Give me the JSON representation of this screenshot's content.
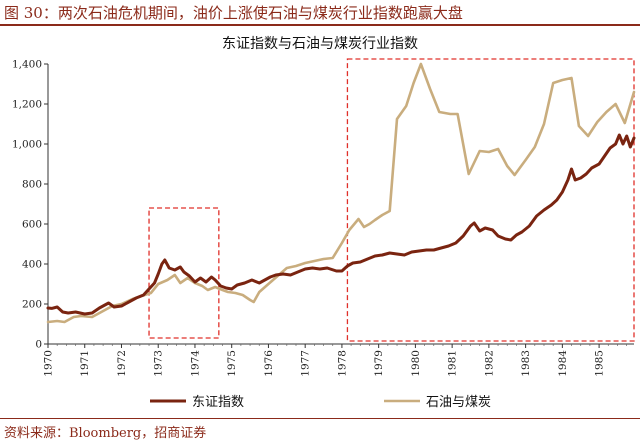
{
  "header": {
    "figure_title": "图 30：两次石油危机期间，油价上涨使石油与煤炭行业指数跑赢大盘",
    "source": "资料来源：Bloomberg，招商证券"
  },
  "colors": {
    "accent": "#8b2a1a",
    "series_dongzheng": "#7a2410",
    "series_oilcoal": "#c9ad7e",
    "highlight_box": "#e0302a"
  },
  "chart_data": {
    "type": "line",
    "title": "东证指数与石油与煤炭行业指数",
    "xlabel": "",
    "ylabel": "",
    "xlim": [
      1970.0,
      1985.95
    ],
    "ylim": [
      0,
      1400
    ],
    "yticks": [
      0,
      200,
      400,
      600,
      800,
      1000,
      1200,
      1400
    ],
    "ytick_labels": [
      "0",
      "200",
      "400",
      "600",
      "800",
      "1,000",
      "1,200",
      "1,400"
    ],
    "xticks": [
      "1970",
      "1971",
      "1972",
      "1973",
      "1974",
      "1975",
      "1976",
      "1977",
      "1978",
      "1979",
      "1980",
      "1981",
      "1982",
      "1983",
      "1984",
      "1985"
    ],
    "grid": false,
    "legend": "bottom",
    "highlight_periods": [
      {
        "x": [
          1972.75,
          1974.65
        ],
        "y": [
          30,
          680
        ]
      },
      {
        "x": [
          1978.15,
          1985.95
        ],
        "y": [
          15,
          1425
        ]
      }
    ],
    "series": [
      {
        "name": "东证指数",
        "points": [
          [
            1970.0,
            180
          ],
          [
            1970.1,
            178
          ],
          [
            1970.25,
            185
          ],
          [
            1970.4,
            160
          ],
          [
            1970.55,
            155
          ],
          [
            1970.75,
            160
          ],
          [
            1971.0,
            150
          ],
          [
            1971.2,
            155
          ],
          [
            1971.4,
            180
          ],
          [
            1971.55,
            195
          ],
          [
            1971.65,
            205
          ],
          [
            1971.8,
            185
          ],
          [
            1972.0,
            190
          ],
          [
            1972.2,
            210
          ],
          [
            1972.4,
            230
          ],
          [
            1972.6,
            245
          ],
          [
            1972.75,
            275
          ],
          [
            1972.9,
            305
          ],
          [
            1973.0,
            350
          ],
          [
            1973.1,
            400
          ],
          [
            1973.18,
            420
          ],
          [
            1973.3,
            380
          ],
          [
            1973.45,
            370
          ],
          [
            1973.6,
            385
          ],
          [
            1973.7,
            360
          ],
          [
            1973.85,
            340
          ],
          [
            1974.0,
            310
          ],
          [
            1974.15,
            330
          ],
          [
            1974.3,
            310
          ],
          [
            1974.45,
            335
          ],
          [
            1974.55,
            320
          ],
          [
            1974.7,
            290
          ],
          [
            1974.85,
            280
          ],
          [
            1975.0,
            275
          ],
          [
            1975.15,
            295
          ],
          [
            1975.35,
            305
          ],
          [
            1975.55,
            320
          ],
          [
            1975.75,
            305
          ],
          [
            1975.9,
            320
          ],
          [
            1976.05,
            335
          ],
          [
            1976.2,
            345
          ],
          [
            1976.4,
            350
          ],
          [
            1976.6,
            345
          ],
          [
            1976.8,
            360
          ],
          [
            1977.0,
            375
          ],
          [
            1977.2,
            380
          ],
          [
            1977.4,
            375
          ],
          [
            1977.6,
            380
          ],
          [
            1977.85,
            365
          ],
          [
            1978.0,
            365
          ],
          [
            1978.15,
            390
          ],
          [
            1978.3,
            405
          ],
          [
            1978.5,
            410
          ],
          [
            1978.7,
            425
          ],
          [
            1978.9,
            440
          ],
          [
            1979.1,
            445
          ],
          [
            1979.3,
            455
          ],
          [
            1979.5,
            450
          ],
          [
            1979.7,
            445
          ],
          [
            1979.9,
            460
          ],
          [
            1980.1,
            465
          ],
          [
            1980.3,
            470
          ],
          [
            1980.5,
            470
          ],
          [
            1980.7,
            480
          ],
          [
            1980.9,
            490
          ],
          [
            1981.1,
            505
          ],
          [
            1981.3,
            540
          ],
          [
            1981.5,
            590
          ],
          [
            1981.6,
            605
          ],
          [
            1981.75,
            565
          ],
          [
            1981.9,
            580
          ],
          [
            1982.1,
            570
          ],
          [
            1982.25,
            540
          ],
          [
            1982.45,
            525
          ],
          [
            1982.6,
            520
          ],
          [
            1982.75,
            545
          ],
          [
            1982.9,
            560
          ],
          [
            1983.1,
            590
          ],
          [
            1983.3,
            640
          ],
          [
            1983.5,
            670
          ],
          [
            1983.7,
            695
          ],
          [
            1983.85,
            720
          ],
          [
            1984.0,
            760
          ],
          [
            1984.15,
            820
          ],
          [
            1984.25,
            875
          ],
          [
            1984.35,
            820
          ],
          [
            1984.5,
            830
          ],
          [
            1984.65,
            850
          ],
          [
            1984.8,
            880
          ],
          [
            1985.0,
            900
          ],
          [
            1985.15,
            940
          ],
          [
            1985.3,
            980
          ],
          [
            1985.45,
            1000
          ],
          [
            1985.55,
            1045
          ],
          [
            1985.65,
            1000
          ],
          [
            1985.75,
            1040
          ],
          [
            1985.85,
            985
          ],
          [
            1985.95,
            1030
          ]
        ]
      },
      {
        "name": "石油与煤炭",
        "points": [
          [
            1970.0,
            110
          ],
          [
            1970.25,
            115
          ],
          [
            1970.45,
            110
          ],
          [
            1970.7,
            135
          ],
          [
            1970.9,
            140
          ],
          [
            1971.2,
            135
          ],
          [
            1971.45,
            160
          ],
          [
            1971.75,
            190
          ],
          [
            1972.0,
            200
          ],
          [
            1972.3,
            225
          ],
          [
            1972.55,
            240
          ],
          [
            1972.8,
            255
          ],
          [
            1973.0,
            300
          ],
          [
            1973.25,
            320
          ],
          [
            1973.45,
            345
          ],
          [
            1973.6,
            305
          ],
          [
            1973.8,
            330
          ],
          [
            1974.0,
            305
          ],
          [
            1974.2,
            290
          ],
          [
            1974.35,
            270
          ],
          [
            1974.55,
            285
          ],
          [
            1974.75,
            270
          ],
          [
            1974.9,
            260
          ],
          [
            1975.1,
            255
          ],
          [
            1975.3,
            245
          ],
          [
            1975.5,
            220
          ],
          [
            1975.6,
            210
          ],
          [
            1975.75,
            260
          ],
          [
            1976.0,
            300
          ],
          [
            1976.25,
            340
          ],
          [
            1976.5,
            380
          ],
          [
            1976.75,
            390
          ],
          [
            1977.0,
            405
          ],
          [
            1977.25,
            415
          ],
          [
            1977.5,
            425
          ],
          [
            1977.75,
            430
          ],
          [
            1978.0,
            505
          ],
          [
            1978.2,
            570
          ],
          [
            1978.45,
            625
          ],
          [
            1978.6,
            585
          ],
          [
            1978.75,
            600
          ],
          [
            1978.9,
            620
          ],
          [
            1979.1,
            645
          ],
          [
            1979.3,
            665
          ],
          [
            1979.5,
            1125
          ],
          [
            1979.75,
            1190
          ],
          [
            1979.95,
            1305
          ],
          [
            1980.15,
            1400
          ],
          [
            1980.4,
            1275
          ],
          [
            1980.65,
            1160
          ],
          [
            1980.95,
            1150
          ],
          [
            1981.15,
            1150
          ],
          [
            1981.45,
            850
          ],
          [
            1981.75,
            965
          ],
          [
            1982.0,
            960
          ],
          [
            1982.25,
            975
          ],
          [
            1982.5,
            890
          ],
          [
            1982.7,
            845
          ],
          [
            1983.0,
            920
          ],
          [
            1983.25,
            985
          ],
          [
            1983.5,
            1100
          ],
          [
            1983.75,
            1305
          ],
          [
            1984.0,
            1320
          ],
          [
            1984.25,
            1330
          ],
          [
            1984.45,
            1090
          ],
          [
            1984.7,
            1040
          ],
          [
            1984.95,
            1110
          ],
          [
            1985.2,
            1160
          ],
          [
            1985.45,
            1200
          ],
          [
            1985.7,
            1105
          ],
          [
            1985.95,
            1260
          ]
        ]
      }
    ]
  }
}
